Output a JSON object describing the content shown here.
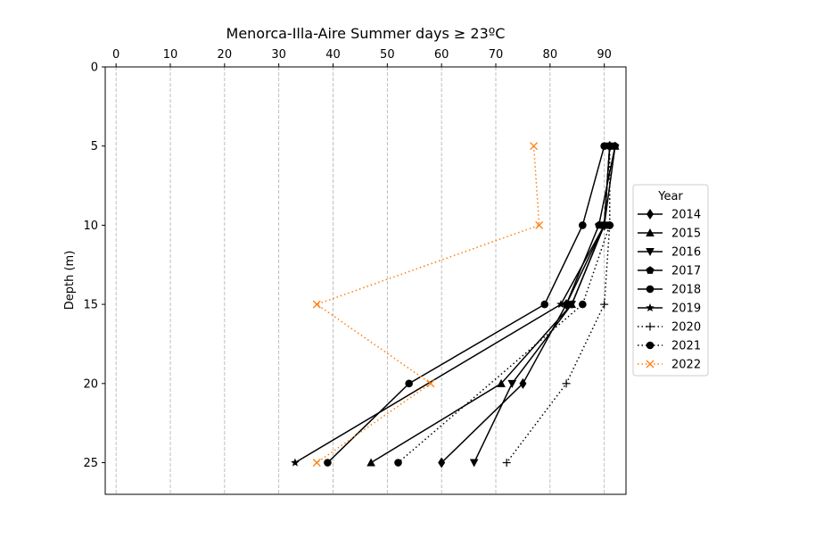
{
  "chart_data": {
    "type": "line",
    "title": "Menorca-Illa-Aire Summer days ≥ 23ºC",
    "xlabel": "",
    "ylabel": "Depth (m)",
    "x_axis_position": "top",
    "y_inverted": true,
    "xlim": [
      -2,
      94
    ],
    "ylim": [
      27,
      0
    ],
    "x_ticks": [
      0,
      10,
      20,
      30,
      40,
      50,
      60,
      70,
      80,
      90
    ],
    "y_ticks": [
      0,
      5,
      10,
      15,
      20,
      25
    ],
    "grid": {
      "x": true,
      "y": false,
      "style": "dashed"
    },
    "legend": {
      "title": "Year",
      "placement": "center-right-outside"
    },
    "series": [
      {
        "name": "2014",
        "color": "#000000",
        "linestyle": "solid",
        "marker": "diamond",
        "points": [
          {
            "x": 91,
            "y": 5
          },
          {
            "x": 90,
            "y": 10
          },
          {
            "x": 83,
            "y": 15
          },
          {
            "x": 75,
            "y": 20
          },
          {
            "x": 60,
            "y": 25
          }
        ]
      },
      {
        "name": "2015",
        "color": "#000000",
        "linestyle": "solid",
        "marker": "triangle-up",
        "points": [
          {
            "x": 92,
            "y": 5
          },
          {
            "x": 90,
            "y": 10
          },
          {
            "x": 84,
            "y": 15
          },
          {
            "x": 71,
            "y": 20
          },
          {
            "x": 47,
            "y": 25
          }
        ]
      },
      {
        "name": "2016",
        "color": "#000000",
        "linestyle": "solid",
        "marker": "triangle-down",
        "points": [
          {
            "x": 91,
            "y": 5
          },
          {
            "x": 90,
            "y": 10
          },
          {
            "x": 84,
            "y": 15
          },
          {
            "x": 73,
            "y": 20
          },
          {
            "x": 66,
            "y": 25
          }
        ]
      },
      {
        "name": "2017",
        "color": "#000000",
        "linestyle": "solid",
        "marker": "pentagon",
        "points": [
          {
            "x": 92,
            "y": 5
          },
          {
            "x": 89,
            "y": 10
          },
          {
            "x": 83,
            "y": 15
          }
        ]
      },
      {
        "name": "2018",
        "color": "#000000",
        "linestyle": "solid",
        "marker": "circle",
        "points": [
          {
            "x": 90,
            "y": 5
          },
          {
            "x": 86,
            "y": 10
          },
          {
            "x": 79,
            "y": 15
          },
          {
            "x": 54,
            "y": 20
          },
          {
            "x": 39,
            "y": 25
          }
        ]
      },
      {
        "name": "2019",
        "color": "#000000",
        "linestyle": "solid",
        "marker": "star",
        "points": [
          {
            "x": 91,
            "y": 5
          },
          {
            "x": 90,
            "y": 10
          },
          {
            "x": 82,
            "y": 15
          },
          {
            "x": 33,
            "y": 25
          }
        ]
      },
      {
        "name": "2020",
        "color": "#000000",
        "linestyle": "dotted",
        "marker": "plus",
        "points": [
          {
            "x": 91,
            "y": 5
          },
          {
            "x": 91,
            "y": 10
          },
          {
            "x": 90,
            "y": 15
          },
          {
            "x": 83,
            "y": 20
          },
          {
            "x": 72,
            "y": 25
          }
        ]
      },
      {
        "name": "2021",
        "color": "#000000",
        "linestyle": "dotted",
        "marker": "circle",
        "points": [
          {
            "x": 91,
            "y": 5
          },
          {
            "x": 91,
            "y": 10
          },
          {
            "x": 86,
            "y": 15
          },
          {
            "x": 52,
            "y": 25
          }
        ]
      },
      {
        "name": "2022",
        "color": "#ff7f0e",
        "linestyle": "dotted",
        "marker": "x",
        "points": [
          {
            "x": 77,
            "y": 5
          },
          {
            "x": 78,
            "y": 10
          },
          {
            "x": 37,
            "y": 15
          },
          {
            "x": 58,
            "y": 20
          },
          {
            "x": 37,
            "y": 25
          }
        ]
      }
    ]
  }
}
